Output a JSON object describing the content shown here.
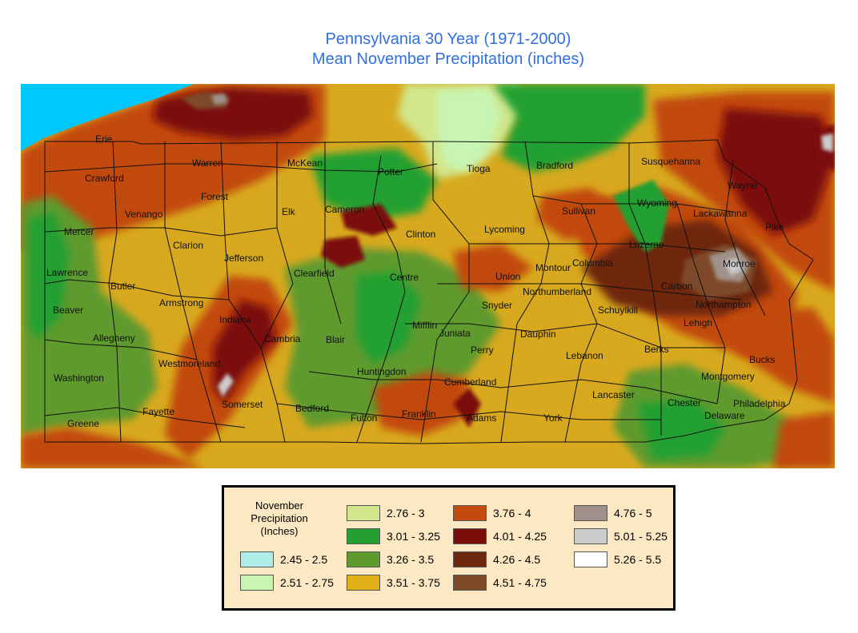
{
  "title": {
    "line1": "Pennsylvania 30 Year (1971-2000)",
    "line2": "Mean November Precipitation (inches)"
  },
  "map": {
    "lake_color": "#00c8ff",
    "counties": [
      "Erie",
      "Crawford",
      "Warren",
      "McKean",
      "Potter",
      "Tioga",
      "Bradford",
      "Susquehanna",
      "Wayne",
      "Forest",
      "Venango",
      "Mercer",
      "Elk",
      "Cameron",
      "Sullivan",
      "Wyoming",
      "Lackawanna",
      "Pike",
      "Clarion",
      "Clinton",
      "Lycoming",
      "Luzerne",
      "Lawrence",
      "Butler",
      "Jefferson",
      "Clearfield",
      "Centre",
      "Union",
      "Montour",
      "Columbia",
      "Monroe",
      "Carbon",
      "Northumberland",
      "Beaver",
      "Armstrong",
      "Snyder",
      "Schuylkill",
      "Northampton",
      "Indiana",
      "Mifflin",
      "Juniata",
      "Lehigh",
      "Allegheny",
      "Cambria",
      "Blair",
      "Perry",
      "Dauphin",
      "Lebanon",
      "Berks",
      "Bucks",
      "Westmoreland",
      "Huntingdon",
      "Washington",
      "Cumberland",
      "Montgomery",
      "Somerset",
      "Bedford",
      "Lancaster",
      "Chester",
      "Philadelphia",
      "Fayette",
      "Fulton",
      "Franklin",
      "Adams",
      "York",
      "Delaware",
      "Greene"
    ]
  },
  "legend": {
    "title": "November\nPrecipitation\n(Inches)",
    "classes": [
      {
        "range": "2.45 - 2.5",
        "color": "#aeeee6"
      },
      {
        "range": "2.51 - 2.75",
        "color": "#c8f5b4"
      },
      {
        "range": "2.76 - 3",
        "color": "#d2e68c"
      },
      {
        "range": "3.01 - 3.25",
        "color": "#24a032"
      },
      {
        "range": "3.26 - 3.5",
        "color": "#5e9a2e"
      },
      {
        "range": "3.51 - 3.75",
        "color": "#e0b01a"
      },
      {
        "range": "3.76 - 4",
        "color": "#c24a0c"
      },
      {
        "range": "4.01 - 4.25",
        "color": "#7c0e0a"
      },
      {
        "range": "4.26 - 4.5",
        "color": "#6e2810"
      },
      {
        "range": "4.51 - 4.75",
        "color": "#7e4a2a"
      },
      {
        "range": "4.76 - 5",
        "color": "#a0928a"
      },
      {
        "range": "5.01 - 5.25",
        "color": "#cccccc"
      },
      {
        "range": "5.26 - 5.5",
        "color": "#ffffff"
      }
    ]
  }
}
